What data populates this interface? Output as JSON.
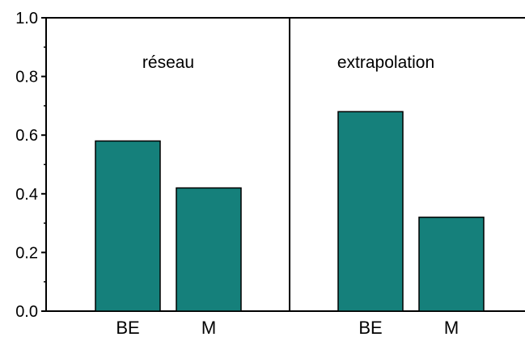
{
  "chart_data": {
    "type": "bar",
    "ylim": [
      0,
      1.0
    ],
    "y_ticks": [
      {
        "value": 0.0,
        "label": "0.0"
      },
      {
        "value": 0.2,
        "label": "0.2"
      },
      {
        "value": 0.4,
        "label": "0.4"
      },
      {
        "value": 0.6,
        "label": "0.6"
      },
      {
        "value": 0.8,
        "label": "0.8"
      },
      {
        "value": 1.0,
        "label": "1.0"
      }
    ],
    "grid": false,
    "bar_color": "#15807b",
    "bar_edge_color": "#000000",
    "panels": [
      {
        "title": "réseau",
        "categories": [
          "BE",
          "M"
        ],
        "values": [
          0.58,
          0.42
        ]
      },
      {
        "title": "extrapolation",
        "categories": [
          "BE",
          "M"
        ],
        "values": [
          0.68,
          0.32
        ]
      }
    ]
  }
}
